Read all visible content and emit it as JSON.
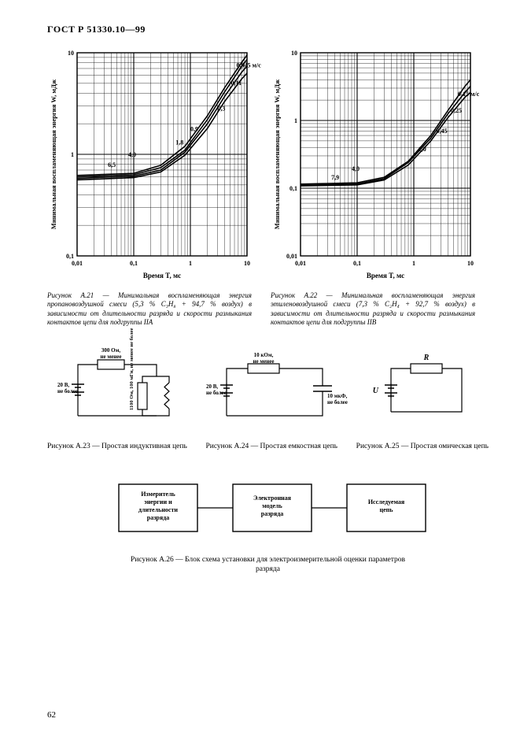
{
  "doc_header": "ГОСТ Р 51330.10—99",
  "page_number": "62",
  "chart_left": {
    "x_label": "Время T, мс",
    "y_label": "Минимальная воспламеняющая энергия W, мДж",
    "x_min": 0.01,
    "x_max": 10,
    "y_min": 0.1,
    "y_max": 10,
    "x_ticks": [
      "0,01",
      "0,1",
      "1",
      "10"
    ],
    "y_ticks": [
      "0,1",
      "1",
      "10"
    ],
    "curve_labels": [
      {
        "text": "0,045 м/c",
        "x": 6.5,
        "y": 7.2
      },
      {
        "text": "0,11",
        "x": 5.2,
        "y": 4.8
      },
      {
        "text": "0,3",
        "x": 3.0,
        "y": 2.7
      },
      {
        "text": "0,9",
        "x": 1.0,
        "y": 1.7
      },
      {
        "text": "1,8",
        "x": 0.55,
        "y": 1.25
      },
      {
        "text": "4,0",
        "x": 0.08,
        "y": 0.95
      },
      {
        "text": "6,5",
        "x": 0.035,
        "y": 0.75
      }
    ],
    "curves": [
      {
        "pts": [
          [
            0.01,
            0.62
          ],
          [
            0.1,
            0.65
          ],
          [
            0.3,
            0.78
          ],
          [
            0.8,
            1.2
          ],
          [
            2,
            2.4
          ],
          [
            4,
            4.5
          ],
          [
            8,
            8.0
          ],
          [
            10,
            9.5
          ]
        ]
      },
      {
        "pts": [
          [
            0.01,
            0.6
          ],
          [
            0.1,
            0.63
          ],
          [
            0.3,
            0.74
          ],
          [
            0.8,
            1.1
          ],
          [
            2,
            2.2
          ],
          [
            4,
            4.1
          ],
          [
            8,
            7.3
          ],
          [
            10,
            8.6
          ]
        ]
      },
      {
        "pts": [
          [
            0.01,
            0.58
          ],
          [
            0.1,
            0.61
          ],
          [
            0.3,
            0.7
          ],
          [
            0.8,
            1.05
          ],
          [
            2,
            2.0
          ],
          [
            4,
            3.7
          ],
          [
            8,
            6.4
          ],
          [
            10,
            7.4
          ]
        ]
      },
      {
        "pts": [
          [
            0.01,
            0.56
          ],
          [
            0.1,
            0.59
          ],
          [
            0.3,
            0.67
          ],
          [
            0.8,
            0.98
          ],
          [
            2,
            1.8
          ],
          [
            4,
            3.3
          ],
          [
            8,
            5.5
          ],
          [
            10,
            6.3
          ]
        ]
      }
    ],
    "caption": "Рисунок А.21 — Минимальная воспламеняющая энергия пропановоздушной смеси (5,3 % C₃H₈ + 94,7 % воздух) в зависимости от длительности разряда и скорости размыкания контактов цепи для подгруппы IIA",
    "colors": {
      "line": "#000",
      "grid": "#000",
      "bg": "#fff"
    }
  },
  "chart_right": {
    "x_label": "Время T, мс",
    "y_label": "Минимальная воспламеняющая энергия W, мДж",
    "x_min": 0.01,
    "x_max": 10,
    "y_min": 0.01,
    "y_max": 10,
    "x_ticks": [
      "0,01",
      "0,1",
      "1",
      "10"
    ],
    "y_ticks": [
      "0,01",
      "0,1",
      "1",
      "10"
    ],
    "curve_labels": [
      {
        "text": "0,15 м/c",
        "x": 6.0,
        "y": 2.3
      },
      {
        "text": "0,25",
        "x": 4.5,
        "y": 1.3
      },
      {
        "text": "0,45",
        "x": 2.5,
        "y": 0.65
      },
      {
        "text": "1,0",
        "x": 1.2,
        "y": 0.35
      },
      {
        "text": "4,0",
        "x": 0.08,
        "y": 0.18
      },
      {
        "text": "7,9",
        "x": 0.035,
        "y": 0.135
      }
    ],
    "curves": [
      {
        "pts": [
          [
            0.01,
            0.115
          ],
          [
            0.1,
            0.12
          ],
          [
            0.3,
            0.145
          ],
          [
            0.8,
            0.25
          ],
          [
            2,
            0.6
          ],
          [
            4,
            1.4
          ],
          [
            8,
            3.2
          ],
          [
            10,
            4.0
          ]
        ]
      },
      {
        "pts": [
          [
            0.01,
            0.11
          ],
          [
            0.1,
            0.115
          ],
          [
            0.3,
            0.138
          ],
          [
            0.8,
            0.24
          ],
          [
            2,
            0.55
          ],
          [
            4,
            1.25
          ],
          [
            8,
            2.6
          ],
          [
            10,
            3.2
          ]
        ]
      },
      {
        "pts": [
          [
            0.01,
            0.108
          ],
          [
            0.1,
            0.112
          ],
          [
            0.3,
            0.132
          ],
          [
            0.8,
            0.22
          ],
          [
            2,
            0.5
          ],
          [
            4,
            1.1
          ],
          [
            8,
            2.2
          ],
          [
            10,
            2.6
          ]
        ]
      }
    ],
    "caption": "Рисунок А.22 — Минимальная воспламеняющая энергия этиленовоздушной смеси (7,3 % C₂H₄ + 92,7 % воздух) в зависимости от длительности разряда и скорости размыкания контактов цепи для подгруппы IIB",
    "colors": {
      "line": "#000",
      "grid": "#000",
      "bg": "#fff"
    }
  },
  "circuits": {
    "a23": {
      "top_r": "300 Ом,\nне менее",
      "vert_r": "1100 Ом, 100 мГн,\nне менее не более",
      "src": "20 В,\nне более",
      "caption": "Рисунок А.23 — Простая индуктивная цепь"
    },
    "a24": {
      "top_r": "10 кОм,\nне менее",
      "cap": "10 мкФ,\nне более",
      "src": "20 В,\nне более",
      "caption": "Рисунок А.24 — Простая емкостная цепь"
    },
    "a25": {
      "r": "R",
      "u": "U",
      "caption": "Рисунок А.25 — Простая омическая цепь"
    }
  },
  "block_diagram": {
    "b1": "Измеритель\nэнергии и\nдлительности\nразряда",
    "b2": "Электронная\nмодель\nразряда",
    "b3": "Исследуемая\nцепь",
    "caption": "Рисунок А.26 — Блок схема установки для электроизмерительной оценки параметров разряда"
  }
}
